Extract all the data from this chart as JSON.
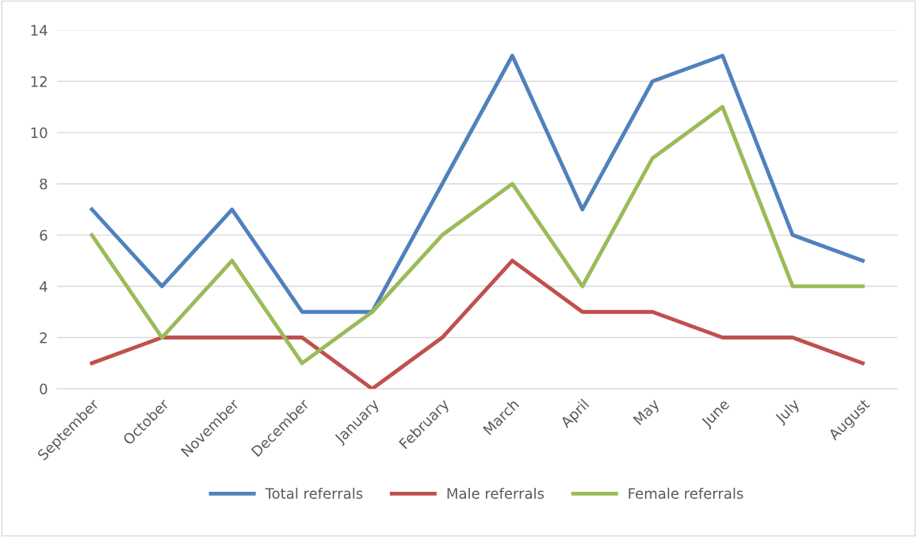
{
  "chart_data": {
    "type": "line",
    "categories": [
      "September",
      "October",
      "November",
      "December",
      "January",
      "February",
      "March",
      "April",
      "May",
      "June",
      "July",
      "August"
    ],
    "series": [
      {
        "name": "Total referrals",
        "color": "#4f81bd",
        "values": [
          7,
          4,
          7,
          3,
          3,
          8,
          13,
          7,
          12,
          13,
          6,
          5
        ]
      },
      {
        "name": "Male referrals",
        "color": "#c0504d",
        "values": [
          1,
          2,
          2,
          2,
          0,
          2,
          5,
          3,
          3,
          2,
          2,
          1
        ]
      },
      {
        "name": "Female referrals",
        "color": "#9bbb59",
        "values": [
          6,
          2,
          5,
          1,
          3,
          6,
          8,
          4,
          9,
          11,
          4,
          4
        ]
      }
    ],
    "ylim": [
      0,
      14
    ],
    "yticks": [
      0,
      2,
      4,
      6,
      8,
      10,
      12,
      14
    ],
    "grid": "y",
    "legend": "bottom",
    "marker": "none",
    "line_style": "solid"
  }
}
